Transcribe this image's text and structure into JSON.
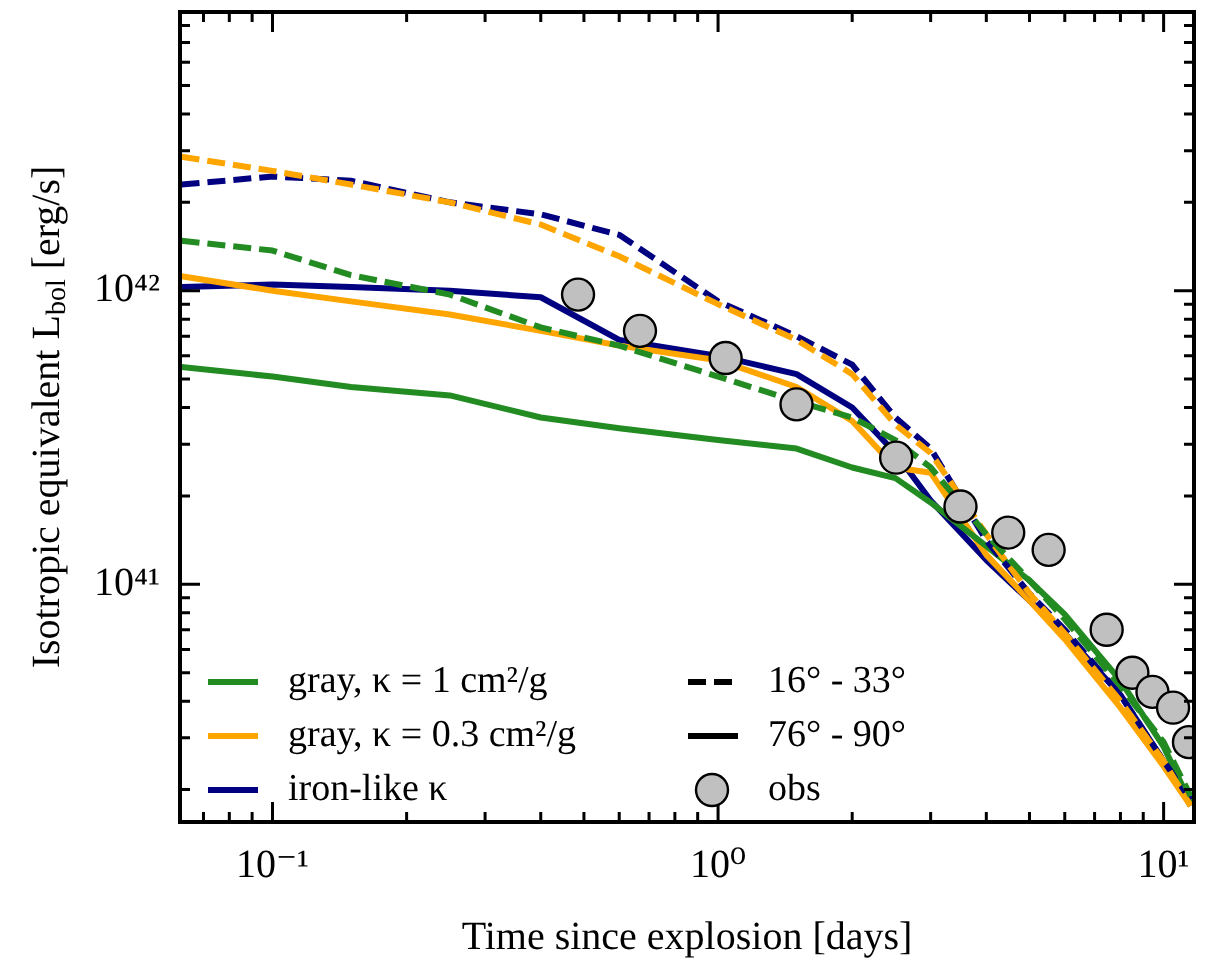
{
  "chart_data": {
    "type": "line",
    "xlabel": "Time since explosion [days]",
    "ylabel": "Isotropic equivalent L$_{bol}$ [erg/s]",
    "x": [
      0.0625,
      0.1,
      0.15,
      0.25,
      0.4,
      0.6,
      1,
      1.5,
      2,
      2.5,
      3,
      4,
      5,
      6,
      8,
      10,
      11.5
    ],
    "series": [
      {
        "color": "#228b22",
        "line_style": "dashed",
        "values": [
          1.48e+42,
          1.37e+42,
          1.13e+42,
          9.7e+41,
          7.5e+41,
          6.5e+41,
          5.1e+41,
          4.2e+41,
          3.7e+41,
          3.1e+41,
          2.5e+41,
          1.48e+41,
          1.03e+41,
          7.6e+40,
          4.5e+40,
          2.9e+40,
          1.9e+40
        ]
      },
      {
        "name": "gray, κ = 1 cm²/g",
        "color": "#228b22",
        "line_style": "solid",
        "values": [
          5.5e+41,
          5.1e+41,
          4.7e+41,
          4.4e+41,
          3.7e+41,
          3.4e+41,
          3.1e+41,
          2.9e+41,
          2.5e+41,
          2.3e+41,
          1.9e+41,
          1.35e+41,
          1.03e+41,
          7.9e+40,
          4.7e+40,
          2.8e+40,
          1.8e+40
        ]
      },
      {
        "color": "#ffa500",
        "line_style": "dashed",
        "values": [
          2.86e+42,
          2.56e+42,
          2.3e+42,
          2e+42,
          1.68e+42,
          1.31e+42,
          9e+41,
          6.8e+41,
          5.2e+41,
          3.5e+41,
          2.8e+41,
          1.48e+41,
          9.3e+40,
          6.8e+40,
          4e+40,
          2.5e+40,
          1.76e+40
        ]
      },
      {
        "name": "gray, κ = 0.3 cm²/g",
        "color": "#ffa500",
        "line_style": "solid",
        "values": [
          1.12e+42,
          1e+42,
          9.2e+41,
          8.3e+41,
          7.3e+41,
          6.5e+41,
          5.8e+41,
          4.7e+41,
          3.6e+41,
          2.5e+41,
          2.4e+41,
          1.26e+41,
          8.8e+40,
          6.5e+40,
          3.8e+40,
          2.4e+40,
          1.76e+40
        ]
      },
      {
        "color": "#000080",
        "line_style": "dashed",
        "values": [
          2.3e+42,
          2.45e+42,
          2.37e+42,
          2e+42,
          1.82e+42,
          1.55e+42,
          9.2e+41,
          7e+41,
          5.6e+41,
          3.7e+41,
          2.9e+41,
          1.41e+41,
          9.3e+40,
          7e+40,
          4.2e+40,
          2.5e+40,
          1.85e+40
        ]
      },
      {
        "name": "iron-like κ",
        "color": "#000080",
        "line_style": "solid",
        "values": [
          1.03e+42,
          1.05e+42,
          1.03e+42,
          1e+42,
          9.5e+41,
          6.8e+41,
          6e+41,
          5.2e+41,
          4e+41,
          2.8e+41,
          1.93e+41,
          1.21e+41,
          8.8e+40,
          6.8e+40,
          4.2e+40,
          2.5e+40,
          1.76e+40
        ]
      },
      {
        "name": "obs",
        "type": "scatter",
        "marker": "circle",
        "color": "#c0c0c0",
        "x": [
          0.485,
          0.668,
          1.04,
          1.5,
          2.51,
          3.5,
          4.48,
          5.52,
          7.45,
          8.51,
          9.44,
          10.5,
          11.4
        ],
        "values": [
          9.7e+41,
          7.3e+41,
          5.9e+41,
          4.1e+41,
          2.7e+41,
          1.84e+41,
          1.5e+41,
          1.31e+41,
          7e+40,
          5e+40,
          4.3e+40,
          3.8e+40,
          2.9e+40
        ]
      }
    ],
    "annotations": [
      "16° - 33°",
      "76° - 90°"
    ],
    "log": "xy",
    "grid": false,
    "legend": "bottom left",
    "marker": "none",
    "xlim": [
      0.062,
      11.7
    ],
    "ylim": [
      1.55e+40,
      8.9e+42
    ],
    "xticks": [
      {
        "value": 0.07,
        "label": null
      },
      {
        "value": 0.08,
        "label": null
      },
      {
        "value": 0.09,
        "label": null
      },
      {
        "value": 0.1,
        "label": "10⁻¹"
      },
      {
        "value": 0.2,
        "label": null
      },
      {
        "value": 0.3,
        "label": null
      },
      {
        "value": 0.4,
        "label": null
      },
      {
        "value": 0.5,
        "label": null
      },
      {
        "value": 0.6,
        "label": null
      },
      {
        "value": 0.7,
        "label": null
      },
      {
        "value": 0.8,
        "label": null
      },
      {
        "value": 0.9,
        "label": null
      },
      {
        "value": 1,
        "label": "10⁰"
      },
      {
        "value": 2,
        "label": null
      },
      {
        "value": 3,
        "label": null
      },
      {
        "value": 4,
        "label": null
      },
      {
        "value": 5,
        "label": null
      },
      {
        "value": 6,
        "label": null
      },
      {
        "value": 7,
        "label": null
      },
      {
        "value": 8,
        "label": null
      },
      {
        "value": 9,
        "label": null
      },
      {
        "value": 10,
        "label": "10¹"
      }
    ],
    "yticks": [
      {
        "value": 2e+40,
        "label": null
      },
      {
        "value": 3e+40,
        "label": null
      },
      {
        "value": 4e+40,
        "label": null
      },
      {
        "value": 5e+40,
        "label": null
      },
      {
        "value": 6e+40,
        "label": null
      },
      {
        "value": 7e+40,
        "label": null
      },
      {
        "value": 8e+40,
        "label": null
      },
      {
        "value": 9e+40,
        "label": null
      },
      {
        "value": 1e+41,
        "label": "10⁴¹"
      },
      {
        "value": 2e+41,
        "label": null
      },
      {
        "value": 3e+41,
        "label": null
      },
      {
        "value": 4e+41,
        "label": null
      },
      {
        "value": 5e+41,
        "label": null
      },
      {
        "value": 6e+41,
        "label": null
      },
      {
        "value": 7e+41,
        "label": null
      },
      {
        "value": 8e+41,
        "label": null
      },
      {
        "value": 9e+41,
        "label": null
      },
      {
        "value": 1e+42,
        "label": "10⁴²"
      },
      {
        "value": 2e+42,
        "label": null
      },
      {
        "value": 3e+42,
        "label": null
      },
      {
        "value": 4e+42,
        "label": null
      },
      {
        "value": 5e+42,
        "label": null
      },
      {
        "value": 6e+42,
        "label": null
      },
      {
        "value": 7e+42,
        "label": null
      },
      {
        "value": 8e+42,
        "label": null
      }
    ]
  }
}
